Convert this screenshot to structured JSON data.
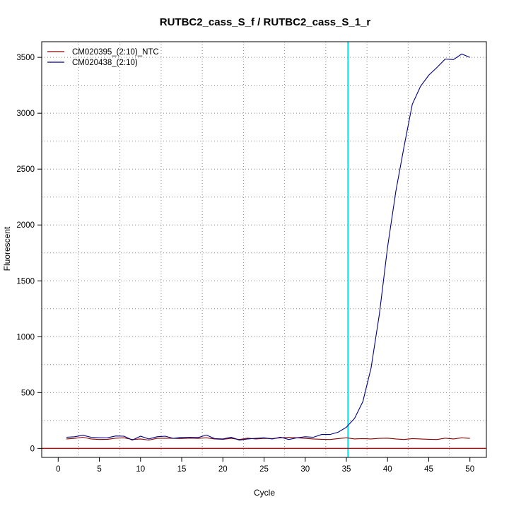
{
  "chart_data": {
    "type": "line",
    "title": "RUTBC2_cass_S_f / RUTBC2_cass_S_1_r",
    "xlabel": "Cycle",
    "ylabel": "Fluorescent",
    "xlim": [
      -2,
      52
    ],
    "ylim": [
      -80,
      3640
    ],
    "x_ticks": [
      0,
      5,
      10,
      15,
      20,
      25,
      30,
      35,
      40,
      45,
      50
    ],
    "y_ticks": [
      0,
      500,
      1000,
      1500,
      2000,
      2500,
      3000,
      3500
    ],
    "grid": true,
    "legend_position": "top-left",
    "threshold_line": {
      "x": 35.2,
      "color": "#00e5ee"
    },
    "baseline": {
      "y": 0,
      "color": "#cc0000"
    },
    "x": [
      1,
      2,
      3,
      4,
      5,
      6,
      7,
      8,
      9,
      10,
      11,
      12,
      13,
      14,
      15,
      16,
      17,
      18,
      19,
      20,
      21,
      22,
      23,
      24,
      25,
      26,
      27,
      28,
      29,
      30,
      31,
      32,
      33,
      34,
      35,
      36,
      37,
      38,
      39,
      40,
      41,
      42,
      43,
      44,
      45,
      46,
      47,
      48,
      49,
      50
    ],
    "series": [
      {
        "name": "CM020395_(2:10)_NTC",
        "color": "#8b0000",
        "values": [
          85,
          90,
          100,
          85,
          80,
          82,
          92,
          95,
          80,
          85,
          75,
          90,
          92,
          90,
          88,
          92,
          90,
          95,
          85,
          82,
          90,
          80,
          92,
          85,
          90,
          88,
          95,
          100,
          95,
          90,
          85,
          82,
          80,
          88,
          95,
          85,
          88,
          85,
          90,
          92,
          85,
          80,
          88,
          85,
          82,
          80,
          92,
          85,
          95,
          90
        ]
      },
      {
        "name": "CM020438_(2:10)",
        "color": "#000080",
        "values": [
          100,
          105,
          118,
          100,
          95,
          96,
          112,
          110,
          75,
          110,
          85,
          105,
          110,
          90,
          100,
          100,
          98,
          120,
          88,
          85,
          100,
          75,
          85,
          90,
          95,
          85,
          100,
          80,
          95,
          105,
          100,
          125,
          125,
          145,
          190,
          270,
          420,
          720,
          1200,
          1800,
          2300,
          2700,
          3080,
          3240,
          3340,
          3410,
          3485,
          3480,
          3530,
          3500
        ]
      }
    ]
  }
}
